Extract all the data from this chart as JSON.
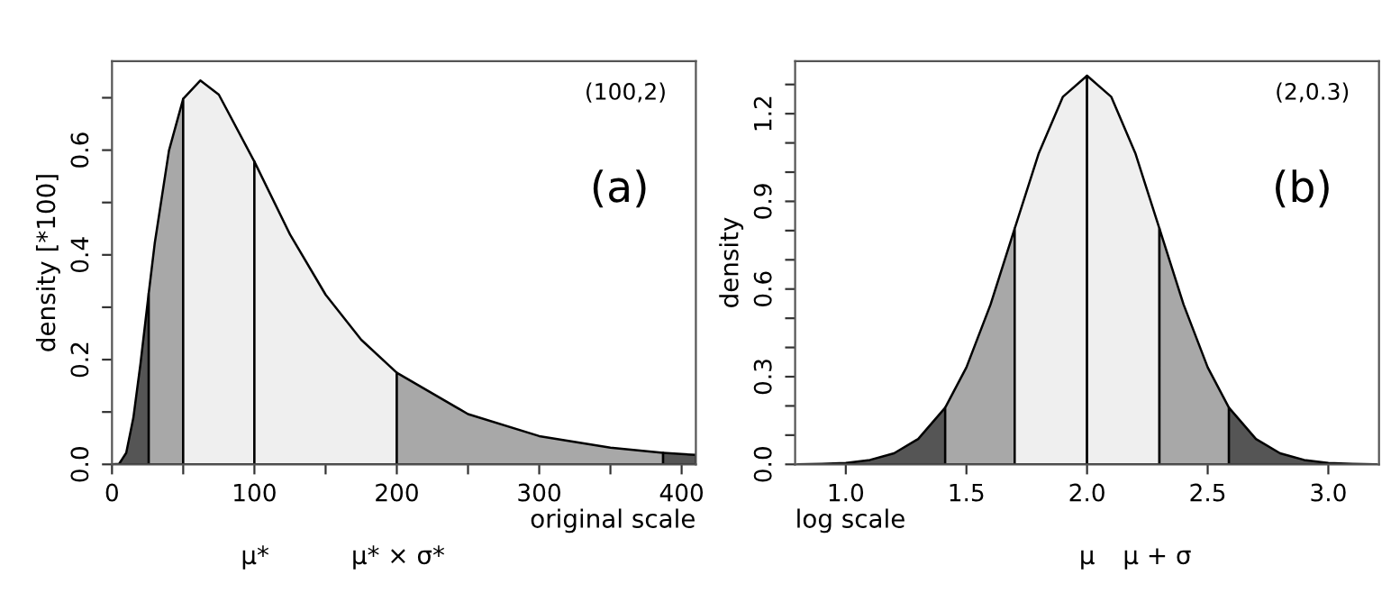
{
  "chart_data": [
    {
      "type": "area",
      "ylabel": "density [*100]",
      "xlabel": "original scale",
      "annotations": [
        "(100,2)",
        "(a)",
        "μ*",
        "μ* × σ*"
      ],
      "xlim": [
        0,
        410
      ],
      "ylim": [
        0,
        0.77
      ],
      "xticks": [
        0,
        {
          "value": 50,
          "label": null
        },
        100,
        {
          "value": 150,
          "label": null
        },
        200,
        {
          "value": 250,
          "label": null
        },
        300,
        {
          "value": 350,
          "label": null
        },
        400
      ],
      "yticks": [
        {
          "value": 0,
          "label": "0.0"
        },
        {
          "value": 0.1,
          "label": null
        },
        0.2,
        {
          "value": 0.3,
          "label": null
        },
        0.4,
        {
          "value": 0.5,
          "label": null
        },
        0.6,
        {
          "value": 0.7,
          "label": null
        }
      ],
      "grid": false,
      "series": [
        {
          "color": "#555555",
          "x": [
            0,
            5,
            10,
            15,
            20,
            25.8
          ],
          "values": [
            0,
            0.001,
            0.022,
            0.089,
            0.192,
            0.327
          ]
        },
        {
          "color": "#a8a8a8",
          "x": [
            25.8,
            30,
            40,
            50
          ],
          "values": [
            0.327,
            0.422,
            0.599,
            0.698
          ]
        },
        {
          "color": "#efefef",
          "x": [
            50,
            62,
            75,
            100
          ],
          "values": [
            0.698,
            0.733,
            0.706,
            0.578
          ]
        },
        {
          "color": "#efefef",
          "x": [
            100,
            125,
            150,
            175,
            200
          ],
          "values": [
            0.578,
            0.439,
            0.324,
            0.238,
            0.175
          ]
        },
        {
          "color": "#a8a8a8",
          "x": [
            200,
            250,
            300,
            350,
            387
          ],
          "values": [
            0.175,
            0.096,
            0.054,
            0.032,
            0.022
          ]
        },
        {
          "color": "#555555",
          "x": [
            387,
            410
          ],
          "values": [
            0.022,
            0.018
          ]
        }
      ]
    },
    {
      "type": "area",
      "ylabel": "density",
      "xlabel": "log scale",
      "annotations": [
        "(2,0.3)",
        "(b)",
        "μ",
        "μ + σ"
      ],
      "xlim": [
        0.79,
        3.21
      ],
      "ylim": [
        0,
        1.38
      ],
      "xticks": [
        {
          "value": 1,
          "label": "1.0"
        },
        1.5,
        {
          "value": 2,
          "label": "2.0"
        },
        2.5,
        {
          "value": 3,
          "label": "3.0"
        }
      ],
      "yticks": [
        {
          "value": 0,
          "label": "0.0"
        },
        {
          "value": 0.1,
          "label": null
        },
        {
          "value": 0.2,
          "label": null
        },
        0.3,
        {
          "value": 0.4,
          "label": null
        },
        {
          "value": 0.5,
          "label": null
        },
        0.6,
        {
          "value": 0.7,
          "label": null
        },
        {
          "value": 0.8,
          "label": null
        },
        0.9,
        {
          "value": 1.0,
          "label": null
        },
        {
          "value": 1.1,
          "label": null
        },
        1.2,
        {
          "value": 1.3,
          "label": null
        }
      ],
      "grid": false,
      "series": [
        {
          "color": "#555555",
          "x": [
            0.8,
            0.9,
            1.0,
            1.1,
            1.2,
            1.3,
            1.412
          ],
          "values": [
            0,
            0.002,
            0.005,
            0.015,
            0.038,
            0.087,
            0.194
          ]
        },
        {
          "color": "#a8a8a8",
          "x": [
            1.412,
            1.5,
            1.6,
            1.7
          ],
          "values": [
            0.194,
            0.332,
            0.547,
            0.807
          ]
        },
        {
          "color": "#efefef",
          "x": [
            1.7,
            1.8,
            1.9,
            2.0
          ],
          "values": [
            0.807,
            1.065,
            1.258,
            1.33
          ]
        },
        {
          "color": "#efefef",
          "x": [
            2.0,
            2.1,
            2.2,
            2.3
          ],
          "values": [
            1.33,
            1.258,
            1.065,
            0.807
          ]
        },
        {
          "color": "#a8a8a8",
          "x": [
            2.3,
            2.4,
            2.5,
            2.588
          ],
          "values": [
            0.807,
            0.547,
            0.332,
            0.194
          ]
        },
        {
          "color": "#555555",
          "x": [
            2.588,
            2.7,
            2.8,
            2.9,
            3.0,
            3.1,
            3.2
          ],
          "values": [
            0.194,
            0.087,
            0.038,
            0.015,
            0.005,
            0.002,
            0
          ]
        }
      ]
    }
  ]
}
